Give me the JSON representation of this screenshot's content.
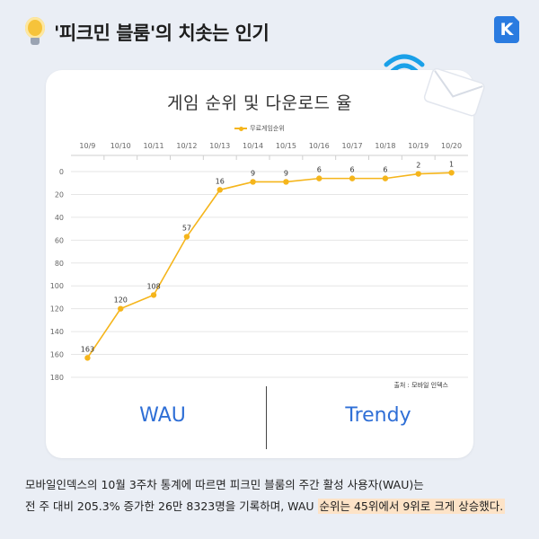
{
  "header": {
    "title": "'피크민 블룸'의 치솟는 인기",
    "logo": "K"
  },
  "card": {
    "source": "출처 : 모바일 인덱스",
    "buttons": {
      "left": "WAU",
      "right": "Trendy"
    }
  },
  "icons": [
    "lightbulb-icon",
    "wifi-icon",
    "envelope-icon",
    "logo-icon"
  ],
  "colors": {
    "line": "#f5b51b",
    "accent_blue": "#2f6fd6",
    "highlight": "#fde3c7"
  },
  "chart_data": {
    "type": "line",
    "title": "게임 순위 및 다운로드 율",
    "categories": [
      "10/9",
      "10/10",
      "10/11",
      "10/12",
      "10/13",
      "10/14",
      "10/15",
      "10/16",
      "10/17",
      "10/18",
      "10/19",
      "10/20"
    ],
    "series": [
      {
        "name": "무료게임순위",
        "values": [
          163,
          120,
          108,
          57,
          16,
          9,
          9,
          6,
          6,
          6,
          2,
          1
        ]
      }
    ],
    "yticks": [
      0,
      20,
      40,
      60,
      80,
      100,
      120,
      140,
      160,
      180
    ],
    "ylim": [
      0,
      180
    ],
    "y_reversed": true,
    "grid": true,
    "legend": "top-center",
    "xaxis_position": "top"
  },
  "description": {
    "line1": "모바일인덱스의 10월 3주차 통계에 따르면 피크민 블룸의 주간 활성 사용자(WAU)는",
    "line2_plain": "전 주 대비 205.3% 증가한 26만 8323명을 기록하며, WAU ",
    "line2_highlight": "순위는 45위에서 9위로 크게 상승했다."
  }
}
